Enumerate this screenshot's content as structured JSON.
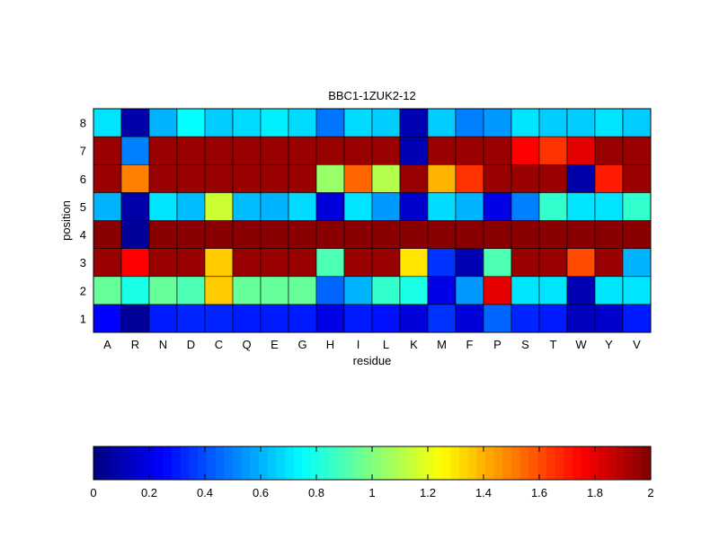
{
  "chart_data": {
    "type": "heatmap",
    "title": "BBC1-1ZUK2-12",
    "xlabel": "residue",
    "ylabel": "position",
    "x_categories": [
      "A",
      "R",
      "N",
      "D",
      "C",
      "Q",
      "E",
      "G",
      "H",
      "I",
      "L",
      "K",
      "M",
      "F",
      "P",
      "S",
      "T",
      "W",
      "Y",
      "V"
    ],
    "y_categories": [
      "1",
      "2",
      "3",
      "4",
      "5",
      "6",
      "7",
      "8"
    ],
    "values": [
      [
        0.25,
        0.05,
        0.3,
        0.32,
        0.32,
        0.3,
        0.3,
        0.3,
        0.2,
        0.3,
        0.28,
        0.18,
        0.35,
        0.18,
        0.45,
        0.32,
        0.3,
        0.12,
        0.15,
        0.3
      ],
      [
        0.95,
        0.8,
        0.95,
        0.9,
        1.35,
        0.95,
        0.95,
        0.95,
        0.45,
        0.6,
        0.85,
        0.8,
        0.2,
        0.55,
        1.8,
        0.7,
        0.7,
        0.1,
        0.7,
        0.7
      ],
      [
        1.95,
        1.75,
        1.95,
        1.95,
        1.35,
        1.95,
        1.95,
        1.95,
        0.9,
        1.95,
        1.95,
        1.3,
        0.35,
        0.1,
        0.9,
        1.95,
        1.95,
        1.6,
        1.95,
        0.6
      ],
      [
        1.98,
        0.05,
        1.98,
        1.98,
        1.98,
        1.98,
        1.98,
        1.98,
        1.98,
        1.98,
        1.98,
        1.98,
        1.98,
        1.98,
        1.98,
        1.98,
        1.98,
        1.98,
        1.98,
        1.98
      ],
      [
        0.6,
        0.08,
        0.7,
        0.62,
        1.15,
        0.62,
        0.6,
        0.68,
        0.18,
        0.7,
        0.55,
        0.15,
        0.68,
        0.6,
        0.2,
        0.5,
        0.85,
        0.7,
        0.7,
        0.85
      ],
      [
        1.95,
        1.5,
        1.95,
        1.95,
        1.95,
        1.95,
        1.95,
        1.95,
        1.05,
        1.55,
        1.1,
        1.95,
        1.4,
        1.65,
        1.95,
        1.95,
        1.95,
        0.08,
        1.7,
        1.95
      ],
      [
        1.95,
        0.5,
        1.95,
        1.95,
        1.95,
        1.95,
        1.95,
        1.95,
        1.95,
        1.95,
        1.95,
        0.1,
        1.95,
        1.95,
        1.95,
        1.75,
        1.65,
        1.8,
        1.95,
        1.95
      ],
      [
        0.7,
        0.08,
        0.6,
        0.75,
        0.65,
        0.68,
        0.72,
        0.68,
        0.48,
        0.68,
        0.65,
        0.1,
        0.65,
        0.5,
        0.55,
        0.7,
        0.65,
        0.65,
        0.7,
        0.65
      ]
    ],
    "colormap": "jet",
    "clim": [
      0,
      2
    ],
    "colorbar": {
      "orientation": "horizontal",
      "placement": "bottom",
      "ticks": [
        "0",
        "0.2",
        "0.4",
        "0.6",
        "0.8",
        "1",
        "1.2",
        "1.4",
        "1.6",
        "1.8",
        "2"
      ]
    },
    "grid": false,
    "legend": "none"
  }
}
